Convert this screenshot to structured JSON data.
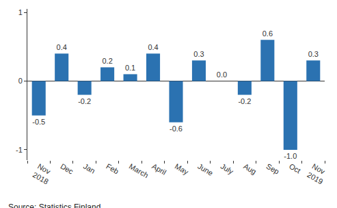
{
  "chart_data": {
    "type": "bar",
    "categories": [
      "Nov 2018",
      "Dec",
      "Jan",
      "Feb",
      "March",
      "April",
      "May",
      "June",
      "July",
      "Aug",
      "Sep",
      "Oct",
      "Nov 2019"
    ],
    "values": [
      -0.5,
      0.4,
      -0.2,
      0.2,
      0.1,
      0.4,
      -0.6,
      0.3,
      0.0,
      -0.2,
      0.6,
      -1.0,
      0.3
    ],
    "value_labels": [
      "-0.5",
      "0.4",
      "-0.2",
      "0.2",
      "0.1",
      "0.4",
      "-0.6",
      "0.3",
      "0.0",
      "-0.2",
      "0.6",
      "-1.0",
      "0.3"
    ],
    "color": "#2b72b1",
    "ylim": [
      -1.15,
      1.05
    ],
    "yticks": [
      -1,
      0,
      1
    ],
    "grid": false,
    "data_labels": true,
    "annotations": [
      "Source: Statistics Finland"
    ]
  }
}
